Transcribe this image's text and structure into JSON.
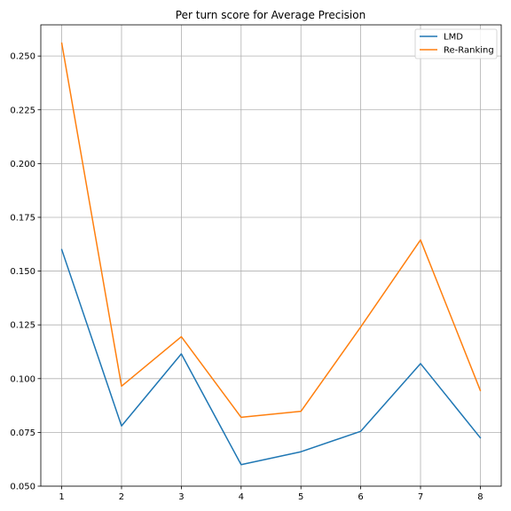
{
  "chart_data": {
    "type": "line",
    "title": "Per turn score for Average Precision",
    "xlabel": "",
    "ylabel": "",
    "x": [
      1,
      2,
      3,
      4,
      5,
      6,
      7,
      8
    ],
    "xlim": [
      0.65,
      8.35
    ],
    "ylim": [
      0.05,
      0.2645
    ],
    "xticks": [
      "1",
      "2",
      "3",
      "4",
      "5",
      "6",
      "7",
      "8"
    ],
    "yticks": [
      "0.050",
      "0.075",
      "0.100",
      "0.125",
      "0.150",
      "0.175",
      "0.200",
      "0.225",
      "0.250"
    ],
    "grid": true,
    "legend_position": "top-right",
    "series": [
      {
        "name": "LMD",
        "color": "#1f77b4",
        "values": [
          0.16,
          0.078,
          0.1115,
          0.06,
          0.066,
          0.0755,
          0.107,
          0.0725
        ]
      },
      {
        "name": "Re-Ranking",
        "color": "#ff7f0e",
        "values": [
          0.256,
          0.0965,
          0.1195,
          0.082,
          0.0848,
          0.124,
          0.1645,
          0.0945
        ]
      }
    ]
  }
}
